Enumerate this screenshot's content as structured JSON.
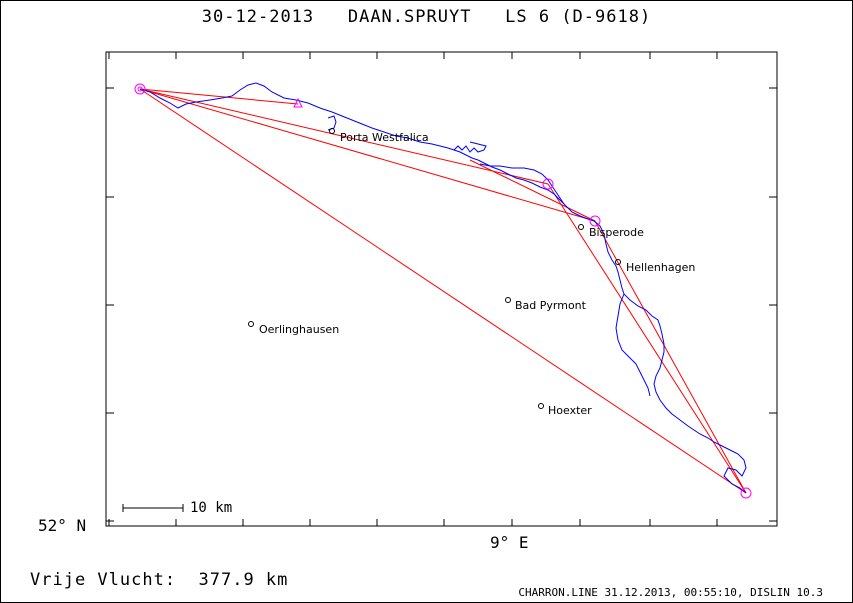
{
  "title": "30-12-2013   DAAN.SPRUYT   LS 6 (D-9618)",
  "axis": {
    "lat_label": "52° N",
    "lon_label": "9° E"
  },
  "scale_bar": {
    "label": "10 km"
  },
  "footer": {
    "distance": "Vrije Vlucht:  377.9 km",
    "credit": "CHARRON.LINE 31.12.2013, 00:55:10, DISLIN 10.3"
  },
  "towns": [
    {
      "name": "Porta Westfalica"
    },
    {
      "name": "Bisperode"
    },
    {
      "name": "Hellenhagen"
    },
    {
      "name": "Bad Pyrmont"
    },
    {
      "name": "Oerlinghausen"
    },
    {
      "name": "Hoexter"
    }
  ],
  "colors": {
    "track": "#0000ff",
    "task": "#ff0000",
    "turnpoint": "#ff00ff",
    "frame": "#000000"
  }
}
